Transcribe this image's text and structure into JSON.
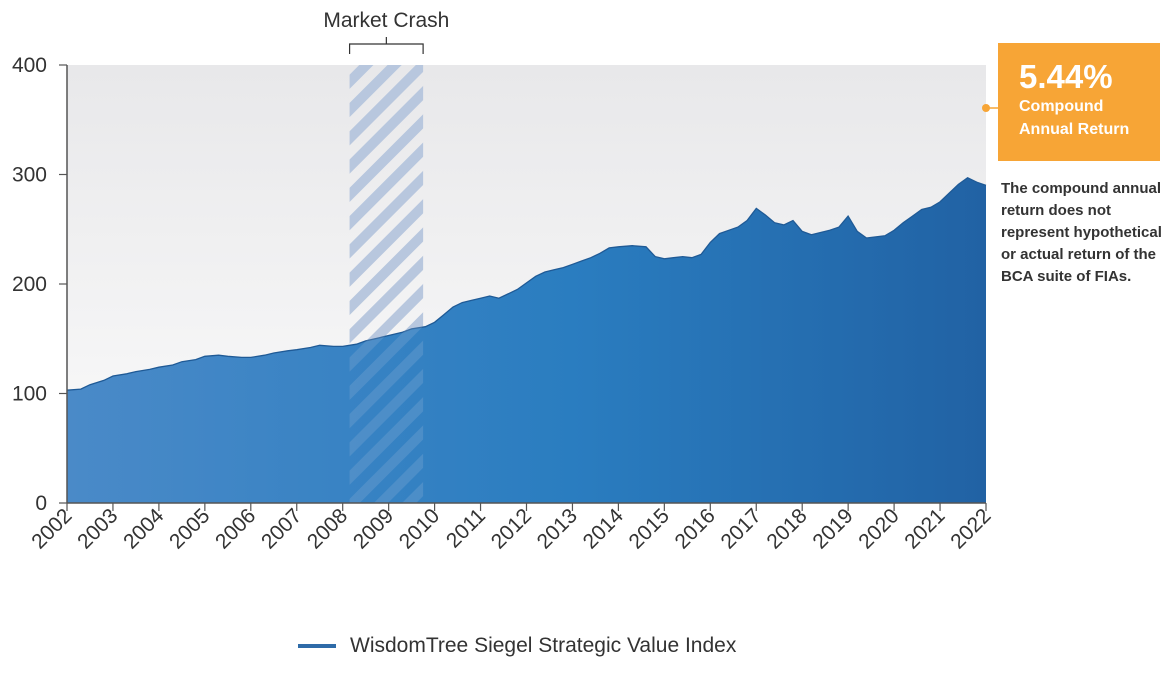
{
  "chart_data": {
    "type": "area",
    "annotation": "Market Crash",
    "shaded_range": [
      2008.15,
      2009.75
    ],
    "x_ticks": [
      "2002",
      "2003",
      "2004",
      "2005",
      "2006",
      "2007",
      "2008",
      "2009",
      "2010",
      "2011",
      "2012",
      "2013",
      "2014",
      "2015",
      "2016",
      "2017",
      "2018",
      "2019",
      "2020",
      "2021",
      "2022"
    ],
    "y_ticks": [
      "0",
      "100",
      "200",
      "300",
      "400"
    ],
    "xlim": [
      2002,
      2022
    ],
    "ylim": [
      0,
      400
    ],
    "grid": false,
    "legend_position": "bottom",
    "series": [
      {
        "name": "WisdomTree Siegel Strategic Value Index",
        "color": "#2E6BA8",
        "x": [
          2002.0,
          2002.3,
          2002.5,
          2002.8,
          2003.0,
          2003.3,
          2003.5,
          2003.8,
          2004.0,
          2004.3,
          2004.5,
          2004.8,
          2005.0,
          2005.3,
          2005.5,
          2005.8,
          2006.0,
          2006.3,
          2006.5,
          2006.8,
          2007.0,
          2007.3,
          2007.5,
          2007.8,
          2008.0,
          2008.3,
          2008.5,
          2008.8,
          2009.0,
          2009.3,
          2009.5,
          2009.8,
          2010.0,
          2010.2,
          2010.4,
          2010.6,
          2010.8,
          2011.0,
          2011.2,
          2011.4,
          2011.6,
          2011.8,
          2012.0,
          2012.2,
          2012.4,
          2012.6,
          2012.8,
          2013.0,
          2013.2,
          2013.4,
          2013.6,
          2013.8,
          2014.0,
          2014.3,
          2014.6,
          2014.8,
          2015.0,
          2015.2,
          2015.4,
          2015.6,
          2015.8,
          2016.0,
          2016.2,
          2016.4,
          2016.6,
          2016.8,
          2017.0,
          2017.2,
          2017.4,
          2017.6,
          2017.8,
          2018.0,
          2018.2,
          2018.4,
          2018.6,
          2018.8,
          2019.0,
          2019.2,
          2019.4,
          2019.6,
          2019.8,
          2020.0,
          2020.2,
          2020.4,
          2020.6,
          2020.8,
          2021.0,
          2021.2,
          2021.4,
          2021.6,
          2021.8,
          2022.0
        ],
        "values": [
          103,
          104,
          108,
          112,
          116,
          118,
          120,
          122,
          124,
          126,
          129,
          131,
          134,
          135,
          134,
          133,
          133,
          135,
          137,
          139,
          140,
          142,
          144,
          143,
          143,
          145,
          148,
          151,
          153,
          156,
          159,
          161,
          165,
          172,
          179,
          183,
          185,
          187,
          189,
          187,
          191,
          195,
          201,
          207,
          211,
          213,
          215,
          218,
          221,
          224,
          228,
          233,
          234,
          235,
          234,
          225,
          223,
          224,
          225,
          224,
          227,
          238,
          246,
          249,
          252,
          258,
          269,
          263,
          256,
          254,
          258,
          248,
          245,
          247,
          249,
          252,
          262,
          248,
          242,
          243,
          244,
          249,
          256,
          262,
          268,
          270,
          275,
          283,
          291,
          297,
          293,
          290
        ]
      }
    ]
  },
  "cagr": {
    "value": "5.44%",
    "caption": "Compound Annual Return",
    "color": "#F7A536"
  },
  "disclaimer": "The compound annual return does not represent hypothetical or actual return of the BCA suite of FIAs."
}
